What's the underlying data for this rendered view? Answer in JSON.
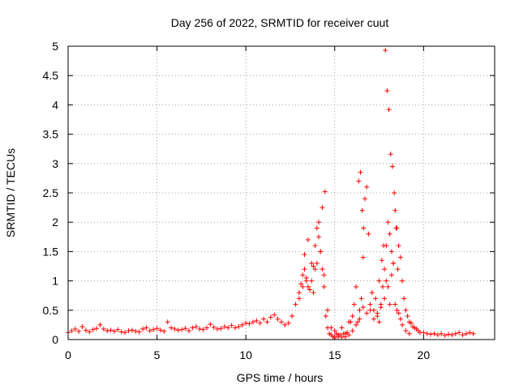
{
  "chart_data": {
    "type": "scatter",
    "title": "Day 256 of 2022, SRMTID for receiver cuut",
    "xlabel": "GPS time / hours",
    "ylabel": "SRMTID / TECUs",
    "xlim": [
      0,
      24
    ],
    "ylim": [
      0,
      5
    ],
    "xticks": [
      0,
      5,
      10,
      15,
      20
    ],
    "xtick_labels": [
      "0",
      "5",
      "10",
      "15",
      "20"
    ],
    "yticks": [
      0,
      0.5,
      1,
      1.5,
      2,
      2.5,
      3,
      3.5,
      4,
      4.5,
      5
    ],
    "ytick_labels": [
      "0",
      "0.5",
      "1",
      "1.5",
      "2",
      "2.5",
      "3",
      "3.5",
      "4",
      "4.5",
      "5"
    ],
    "grid": true,
    "marker": "+",
    "marker_color": "#ff0000",
    "series": [
      {
        "name": "SRMTID",
        "x": [
          0.0,
          0.2,
          0.4,
          0.6,
          0.8,
          1.0,
          1.2,
          1.4,
          1.6,
          1.8,
          2.0,
          2.2,
          2.4,
          2.6,
          2.8,
          3.0,
          3.2,
          3.4,
          3.6,
          3.8,
          4.0,
          4.2,
          4.4,
          4.6,
          4.8,
          5.0,
          5.2,
          5.4,
          5.6,
          5.8,
          6.0,
          6.2,
          6.4,
          6.6,
          6.8,
          7.0,
          7.2,
          7.4,
          7.6,
          7.8,
          8.0,
          8.2,
          8.4,
          8.6,
          8.8,
          9.0,
          9.2,
          9.4,
          9.6,
          9.8,
          10.0,
          10.2,
          10.4,
          10.6,
          10.8,
          11.0,
          11.2,
          11.4,
          11.6,
          11.8,
          12.0,
          12.2,
          12.4,
          12.6,
          12.8,
          13.0,
          13.1,
          13.2,
          13.3,
          13.4,
          13.5,
          13.6,
          13.7,
          13.8,
          13.9,
          14.0,
          14.1,
          14.2,
          14.3,
          14.4,
          14.5,
          14.6,
          14.7,
          14.8,
          14.9,
          15.0,
          15.1,
          15.2,
          15.3,
          15.4,
          15.5,
          15.6,
          15.7,
          15.8,
          15.9,
          16.0,
          16.1,
          16.2,
          16.3,
          16.4,
          16.5,
          16.6,
          16.7,
          16.8,
          16.9,
          17.0,
          17.1,
          17.2,
          17.3,
          17.4,
          17.5,
          17.6,
          17.7,
          17.8,
          17.9,
          18.0,
          18.1,
          18.2,
          18.3,
          18.4,
          18.5,
          18.6,
          18.7,
          18.8,
          18.9,
          19.0,
          19.1,
          19.2,
          19.3,
          19.4,
          19.5,
          19.6,
          19.7,
          19.8,
          20.0,
          20.2,
          20.4,
          20.6,
          20.8,
          21.0,
          21.2,
          21.4,
          21.6,
          21.8,
          22.0,
          22.2,
          22.4,
          22.6,
          22.8,
          13.0,
          13.2,
          13.4,
          13.6,
          13.8,
          14.0,
          14.2,
          14.4,
          14.6,
          14.8,
          15.0,
          15.2,
          15.4,
          15.6,
          15.8,
          16.0,
          16.2,
          16.4,
          16.6,
          16.8,
          17.0,
          17.2,
          17.4,
          17.6,
          17.8,
          17.9,
          18.0,
          18.1,
          18.2,
          18.3,
          18.4,
          18.5,
          18.6,
          18.7,
          18.8,
          19.0,
          19.2,
          13.3,
          13.5,
          13.7,
          13.9,
          14.1,
          14.3,
          14.45,
          16.35,
          16.45,
          16.55,
          16.62,
          17.85,
          17.95,
          18.05,
          18.15,
          18.25,
          18.35,
          17.5,
          17.65,
          17.75,
          18.45,
          18.55
        ],
        "y": [
          0.12,
          0.15,
          0.18,
          0.14,
          0.22,
          0.16,
          0.13,
          0.17,
          0.19,
          0.25,
          0.18,
          0.15,
          0.16,
          0.14,
          0.17,
          0.13,
          0.12,
          0.15,
          0.16,
          0.14,
          0.13,
          0.18,
          0.2,
          0.15,
          0.17,
          0.19,
          0.16,
          0.14,
          0.3,
          0.2,
          0.18,
          0.16,
          0.17,
          0.19,
          0.15,
          0.2,
          0.22,
          0.18,
          0.17,
          0.2,
          0.26,
          0.21,
          0.18,
          0.19,
          0.22,
          0.2,
          0.24,
          0.2,
          0.22,
          0.25,
          0.28,
          0.27,
          0.3,
          0.32,
          0.28,
          0.35,
          0.3,
          0.38,
          0.42,
          0.35,
          0.3,
          0.25,
          0.28,
          0.4,
          0.6,
          0.8,
          0.95,
          1.1,
          1.2,
          1.05,
          0.9,
          0.85,
          1.0,
          1.25,
          1.6,
          1.9,
          1.75,
          1.5,
          1.2,
          0.9,
          0.4,
          0.2,
          0.1,
          0.08,
          0.05,
          0.15,
          0.1,
          0.05,
          0.08,
          0.2,
          0.1,
          0.05,
          0.12,
          0.08,
          0.3,
          0.4,
          0.6,
          0.9,
          0.3,
          0.5,
          0.7,
          1.4,
          2.4,
          2.6,
          1.8,
          0.6,
          0.8,
          0.5,
          0.7,
          0.4,
          0.3,
          0.6,
          0.9,
          1.2,
          1.6,
          2.0,
          1.8,
          1.5,
          1.3,
          2.2,
          1.9,
          1.6,
          1.4,
          1.0,
          0.7,
          0.5,
          0.4,
          0.3,
          0.28,
          0.22,
          0.2,
          0.18,
          0.15,
          0.12,
          0.12,
          0.1,
          0.09,
          0.1,
          0.08,
          0.1,
          0.07,
          0.09,
          0.08,
          0.1,
          0.12,
          0.08,
          0.1,
          0.12,
          0.1,
          0.7,
          0.9,
          1.0,
          0.85,
          0.8,
          1.3,
          1.5,
          1.1,
          0.5,
          0.2,
          0.03,
          0.08,
          0.04,
          0.1,
          0.3,
          0.15,
          0.25,
          0.35,
          0.55,
          0.45,
          0.5,
          0.35,
          0.45,
          0.55,
          0.7,
          1.0,
          0.9,
          0.6,
          1.1,
          1.3,
          0.6,
          0.5,
          0.45,
          0.35,
          0.25,
          0.15,
          0.1,
          1.45,
          1.7,
          1.3,
          1.2,
          2.0,
          2.25,
          2.52,
          2.7,
          2.85,
          2.2,
          1.9,
          4.93,
          4.24,
          3.92,
          3.16,
          2.95,
          2.5,
          1.0,
          1.35,
          1.6,
          1.9,
          1.2
        ]
      }
    ]
  }
}
